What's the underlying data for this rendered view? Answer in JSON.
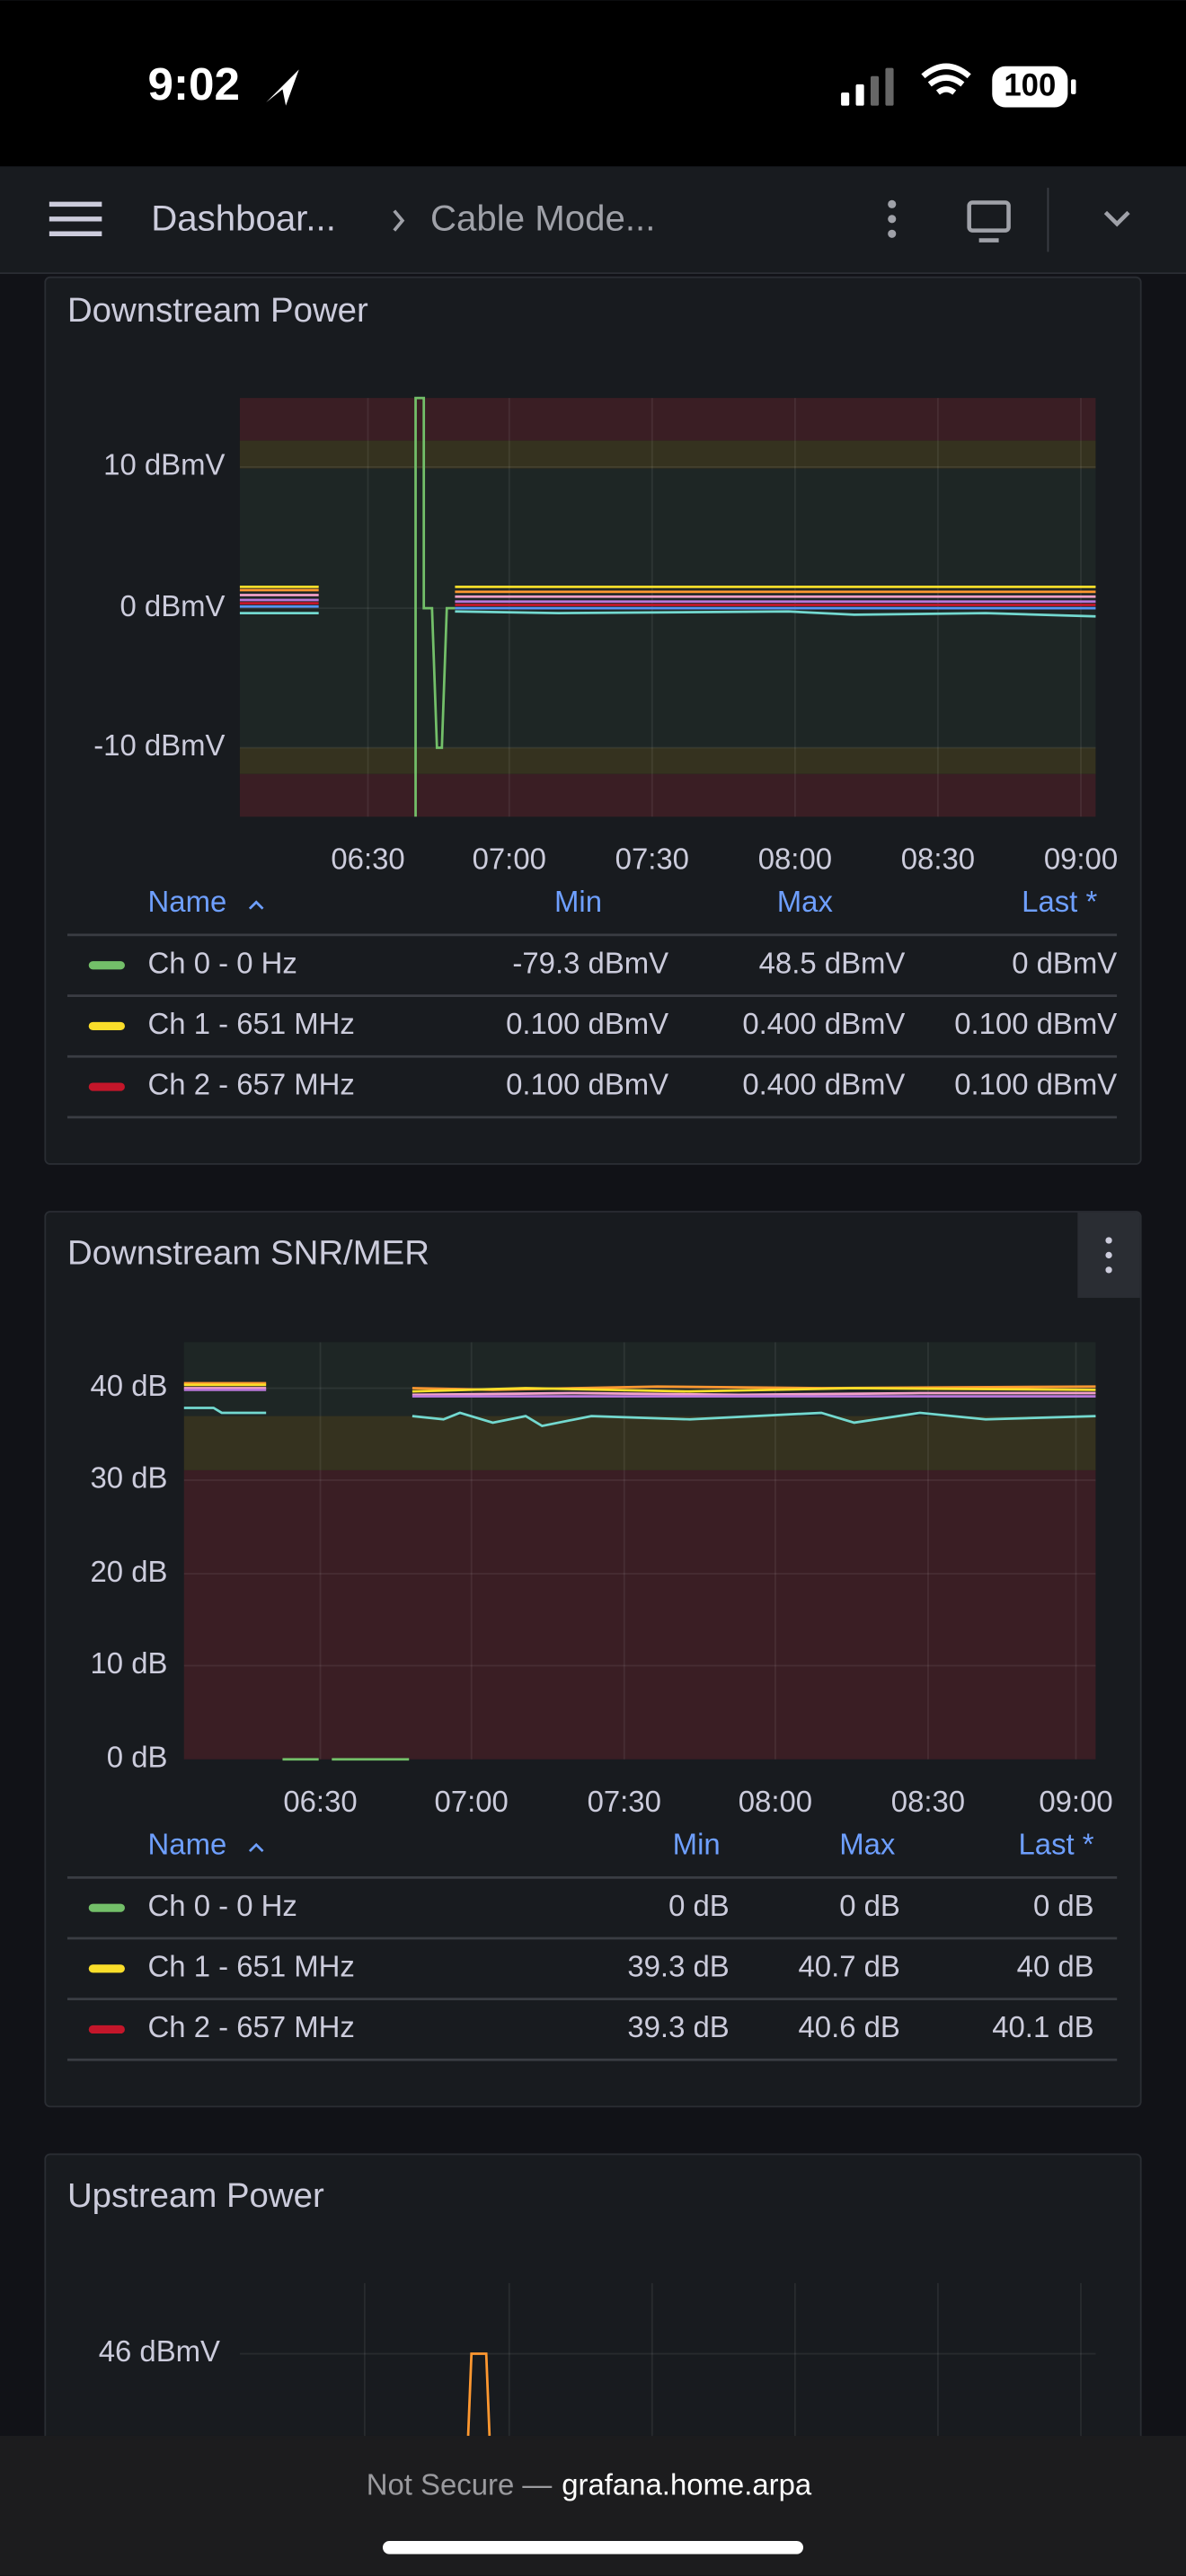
{
  "status_bar": {
    "time": "9:02",
    "battery": "100"
  },
  "nav": {
    "breadcrumb": [
      "Dashboar...",
      "Cable Mode..."
    ]
  },
  "panels": [
    {
      "title": "Downstream Power",
      "y_ticks": [
        "10 dBmV",
        "0 dBmV",
        "-10 dBmV"
      ],
      "x_ticks": [
        "06:30",
        "07:00",
        "07:30",
        "08:00",
        "08:30",
        "09:00"
      ],
      "table": {
        "columns": [
          "Name",
          "Min",
          "Max",
          "Last *"
        ],
        "rows": [
          [
            "Ch 0 - 0 Hz",
            "-79.3 dBmV",
            "48.5 dBmV",
            "0 dBmV"
          ],
          [
            "Ch 1 - 651 MHz",
            "0.100 dBmV",
            "0.400 dBmV",
            "0.100 dBmV"
          ],
          [
            "Ch 2 - 657 MHz",
            "0.100 dBmV",
            "0.400 dBmV",
            "0.100 dBmV"
          ]
        ]
      }
    },
    {
      "title": "Downstream SNR/MER",
      "y_ticks": [
        "40 dB",
        "30 dB",
        "20 dB",
        "10 dB",
        "0 dB"
      ],
      "x_ticks": [
        "06:30",
        "07:00",
        "07:30",
        "08:00",
        "08:30",
        "09:00"
      ],
      "table": {
        "columns": [
          "Name",
          "Min",
          "Max",
          "Last *"
        ],
        "rows": [
          [
            "Ch 0 - 0 Hz",
            "0 dB",
            "0 dB",
            "0 dB"
          ],
          [
            "Ch 1 - 651 MHz",
            "39.3 dB",
            "40.7 dB",
            "40 dB"
          ],
          [
            "Ch 2 - 657 MHz",
            "39.3 dB",
            "40.6 dB",
            "40.1 dB"
          ]
        ]
      }
    },
    {
      "title": "Upstream Power",
      "y_ticks": [
        "46 dBmV"
      ]
    }
  ],
  "footer": {
    "security": "Not Secure —",
    "host": "grafana.home.arpa"
  }
}
